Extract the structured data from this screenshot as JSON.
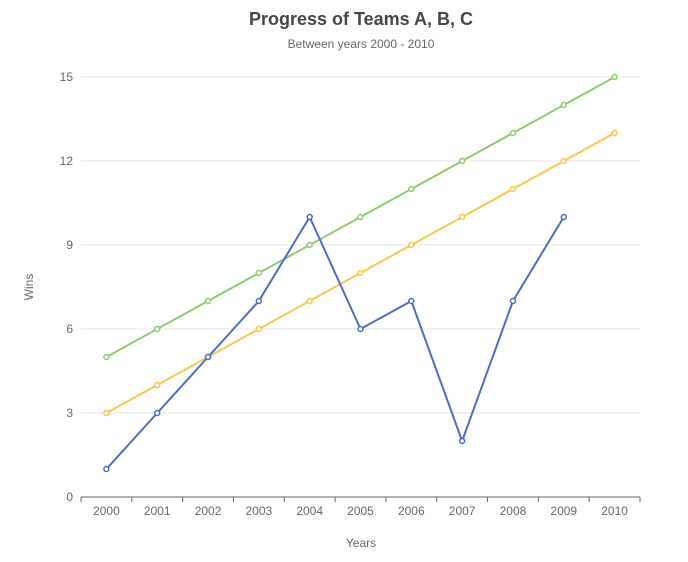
{
  "chart_data": {
    "type": "line",
    "title": "Progress of Teams A, B, C",
    "subtitle": "Between years 2000 - 2010",
    "xlabel": "Years",
    "ylabel": "Wins",
    "categories": [
      "2000",
      "2001",
      "2002",
      "2003",
      "2004",
      "2005",
      "2006",
      "2007",
      "2008",
      "2009",
      "2010"
    ],
    "ylim": [
      0,
      15
    ],
    "yticks": [
      0,
      3,
      6,
      9,
      12,
      15
    ],
    "grid": true,
    "legend": "none",
    "series": [
      {
        "color": "#8cce6e",
        "values": [
          5,
          6,
          7,
          8,
          9,
          10,
          11,
          12,
          13,
          14,
          15
        ]
      },
      {
        "color": "#f7c84b",
        "values": [
          3,
          4,
          5,
          6,
          7,
          8,
          9,
          10,
          11,
          12,
          13
        ]
      },
      {
        "color": "#4f6bc9",
        "values": [
          1,
          3,
          5,
          7,
          10,
          6,
          7,
          2,
          7,
          10,
          null
        ]
      }
    ]
  }
}
